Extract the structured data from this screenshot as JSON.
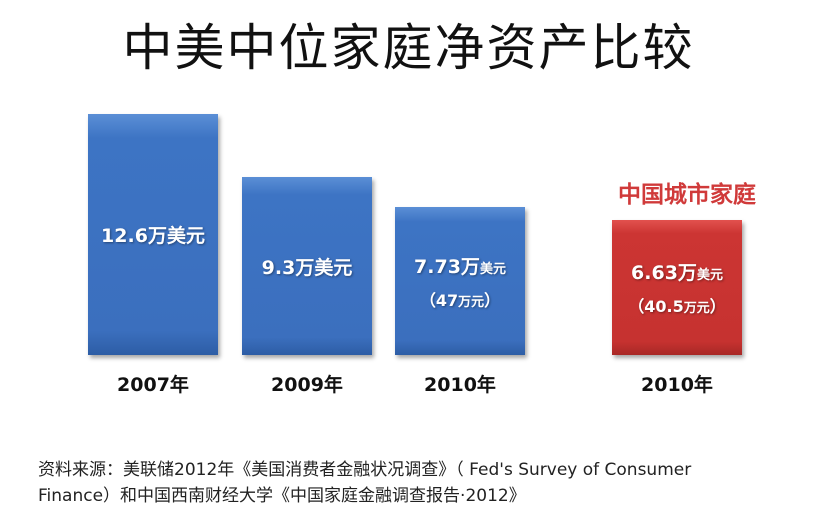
{
  "chart_data": {
    "type": "bar",
    "title": "中美中位家庭净资产比较",
    "categories": [
      "2007年",
      "2009年",
      "2010年",
      "2010年"
    ],
    "values": [
      12.6,
      9.3,
      7.73,
      6.63
    ],
    "unit": "万美元",
    "colors": [
      "#3b6fbe",
      "#3b6fbe",
      "#3b6fbe",
      "#c63230"
    ],
    "data_labels": [
      {
        "value": "12.6",
        "unit": "万美元",
        "sub": ""
      },
      {
        "value": "9.3",
        "unit": "万美元",
        "sub": ""
      },
      {
        "value": "7.73万",
        "unit": "美元",
        "sub_open": "（47",
        "sub_unit": "万元",
        "sub_close": "）"
      },
      {
        "value": "6.63万",
        "unit": "美元",
        "sub_open": "（40.5",
        "sub_unit": "万元",
        "sub_close": "）"
      }
    ],
    "annotation": "中国城市家庭",
    "xlabel": "",
    "ylabel": "",
    "ylim": [
      0,
      12.6
    ],
    "grid": false,
    "legend": "none"
  },
  "source": {
    "line1": "资料来源：美联储2012年《美国消费者金融状况调查》（ Fed's Survey of Consumer",
    "line2": "Finance）和中国西南财经大学《中国家庭金融调查报告·2012》"
  }
}
